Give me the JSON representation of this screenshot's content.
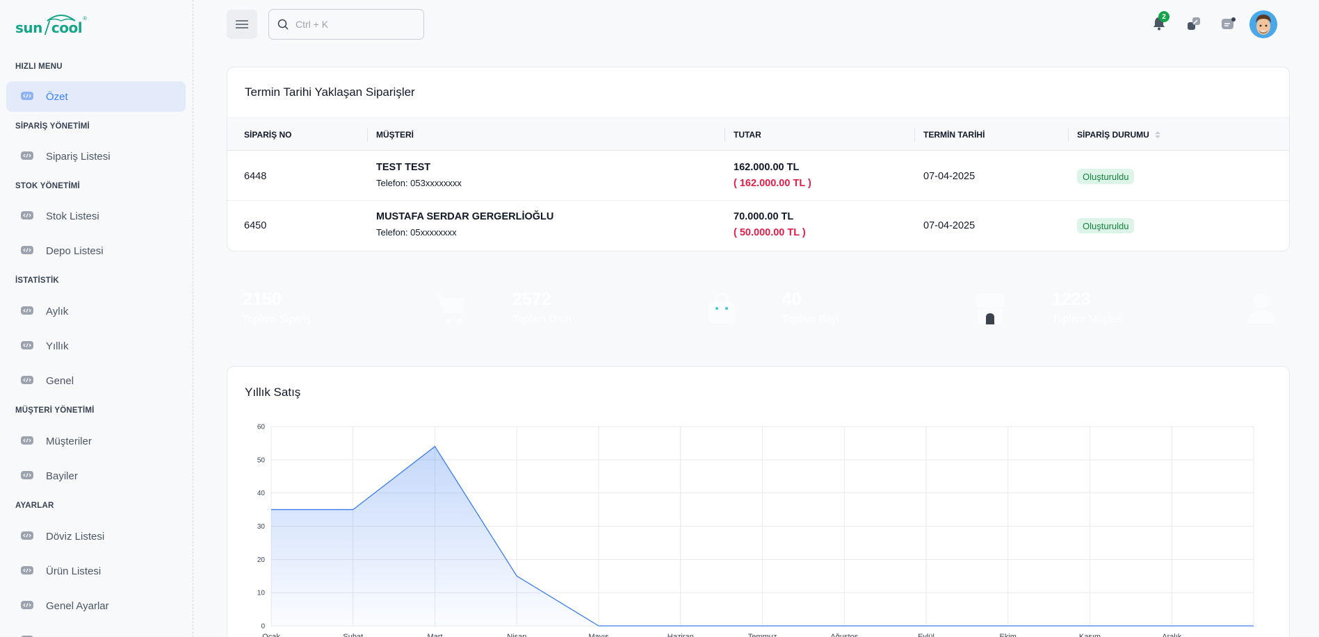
{
  "brand": {
    "name_left": "sun",
    "name_right": "cool",
    "reg": "®",
    "color": "#17a589"
  },
  "sidebar": {
    "sections": [
      {
        "title": "HIZLI MENU",
        "items": [
          {
            "label": "Özet",
            "active": true
          }
        ]
      },
      {
        "title": "SİPARİŞ YÖNETİMİ",
        "items": [
          {
            "label": "Sipariş Listesi"
          }
        ]
      },
      {
        "title": "STOK YÖNETİMİ",
        "items": [
          {
            "label": "Stok Listesi"
          },
          {
            "label": "Depo Listesi"
          }
        ]
      },
      {
        "title": "İSTATİSTİK",
        "items": [
          {
            "label": "Aylık"
          },
          {
            "label": "Yıllık"
          },
          {
            "label": "Genel"
          }
        ]
      },
      {
        "title": "MÜŞTERİ YÖNETİMİ",
        "items": [
          {
            "label": "Müşteriler"
          },
          {
            "label": "Bayiler"
          }
        ]
      },
      {
        "title": "AYARLAR",
        "items": [
          {
            "label": "Döviz Listesi"
          },
          {
            "label": "Ürün Listesi"
          },
          {
            "label": "Genel Ayarlar"
          }
        ]
      }
    ]
  },
  "topbar": {
    "search_placeholder": "Ctrl + K",
    "notification_count": "2",
    "icons": [
      "menu-icon",
      "search-icon",
      "bell-icon",
      "expand-icon",
      "chat-icon",
      "avatar"
    ]
  },
  "orders": {
    "title": "Termin Tarihi Yaklaşan Siparişler",
    "columns": [
      "SİPARİŞ NO",
      "MÜŞTERİ",
      "TUTAR",
      "TERMİN TARİHİ",
      "SİPARİŞ DURUMU"
    ],
    "rows": [
      {
        "order_no": "6448",
        "customer": "TEST TEST",
        "phone": "Telefon: 053xxxxxxxx",
        "amount": "162.000.00 TL",
        "amount_sub": "( 162.000.00 TL )",
        "due_date": "07-04-2025",
        "status": "Oluşturuldu"
      },
      {
        "order_no": "6450",
        "customer": "MUSTAFA SERDAR GERGERLİOĞLU",
        "phone": "Telefon: 05xxxxxxxx",
        "amount": "70.000.00 TL",
        "amount_sub": "( 50.000.00 TL )",
        "due_date": "07-04-2025",
        "status": "Oluşturuldu"
      }
    ]
  },
  "stats": [
    {
      "value": "2150",
      "label": "Toplam Sipariş",
      "color": "#4680f6",
      "icon": "cart-icon"
    },
    {
      "value": "2572",
      "label": "Toplam Ürün",
      "color": "#3ec8d4",
      "icon": "bag-icon"
    },
    {
      "value": "40",
      "label": "Toplam Bayi",
      "color": "#3a424d",
      "icon": "store-icon"
    },
    {
      "value": "1223",
      "label": "Toplam Müşteri",
      "color": "#dc2626",
      "icon": "user-icon"
    }
  ],
  "chart_title": "Yıllık Satış",
  "chart_data": {
    "type": "area",
    "title": "Yıllık Satış",
    "x": [
      "Ocak",
      "Şubat",
      "Mart",
      "Nisan",
      "Mayıs",
      "Haziran",
      "Temmuz",
      "Ağustos",
      "Eylül",
      "Ekim",
      "Kasım",
      "Aralık"
    ],
    "series": [
      {
        "values": [
          35,
          35,
          54,
          15,
          0,
          0,
          0,
          0,
          0,
          0,
          0,
          0
        ]
      }
    ],
    "ylim": [
      0,
      60
    ],
    "yticks": [
      0,
      10,
      20,
      30,
      40,
      50,
      60
    ],
    "grid": true,
    "color": "#3b7df0"
  }
}
